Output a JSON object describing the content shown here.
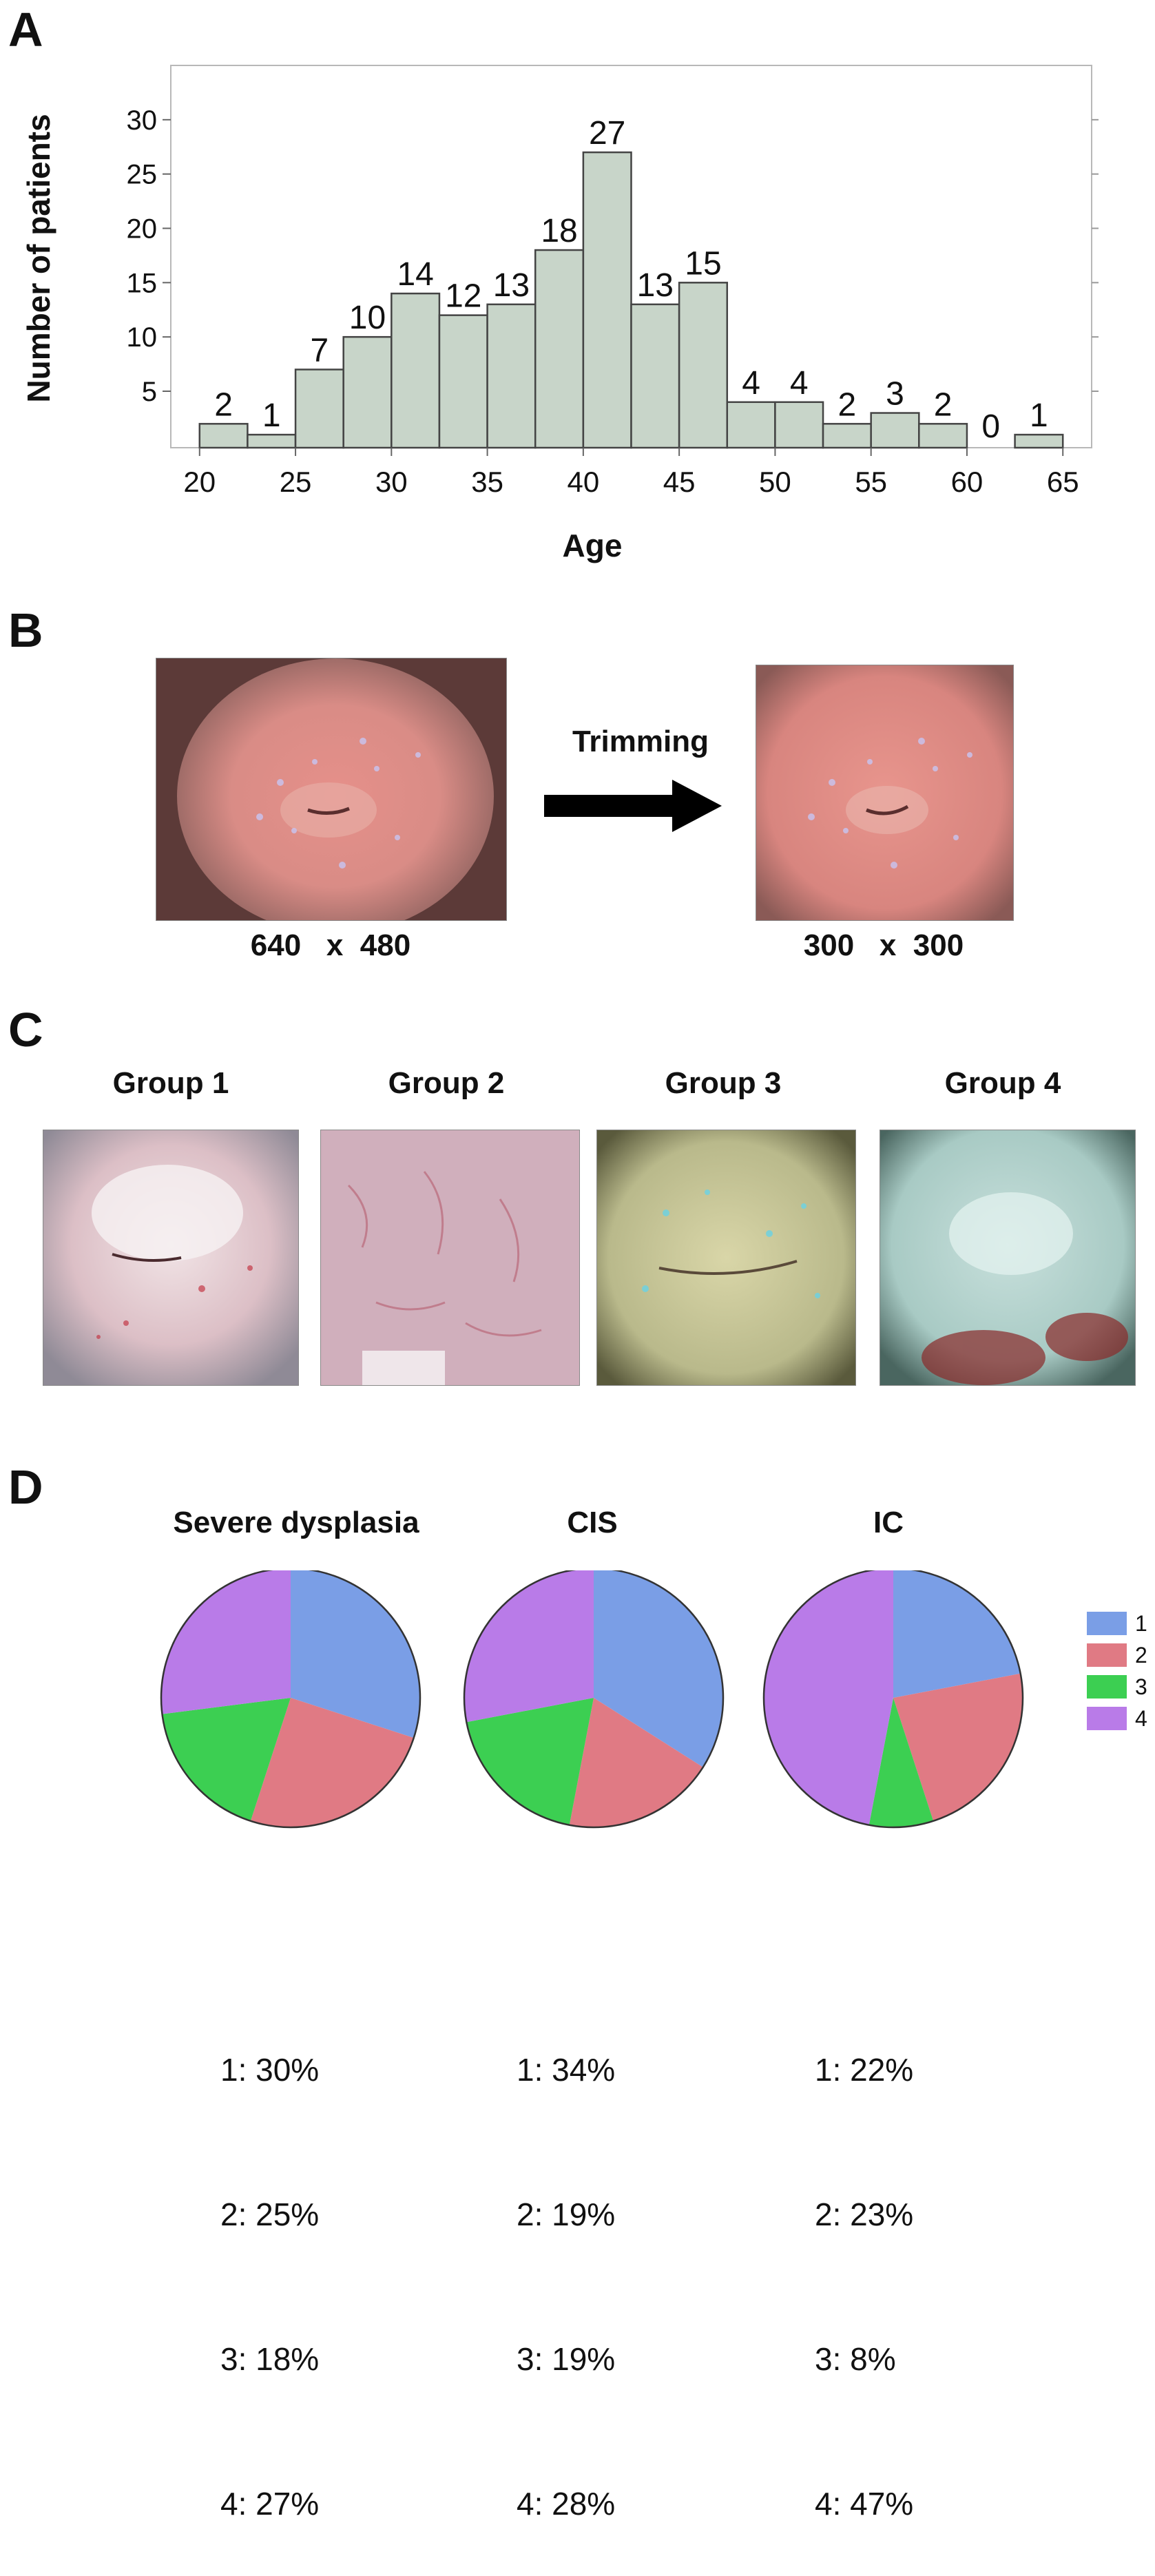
{
  "panels": {
    "a": "A",
    "b": "B",
    "c": "C",
    "d": "D"
  },
  "chart_data": [
    {
      "type": "bar",
      "bins": [
        20,
        22.5,
        25,
        27.5,
        30,
        32.5,
        35,
        37.5,
        40,
        42.5,
        45,
        47.5,
        50,
        52.5,
        55,
        57.5,
        60,
        62.5
      ],
      "bin_width": 2.5,
      "values": [
        2,
        1,
        7,
        10,
        14,
        12,
        13,
        18,
        27,
        13,
        15,
        4,
        4,
        2,
        3,
        2,
        0,
        1
      ],
      "xlabel": "Age",
      "ylabel": "Number of patients",
      "xticks": [
        20,
        25,
        30,
        35,
        40,
        45,
        50,
        55,
        60,
        65
      ],
      "yticks": [
        5,
        10,
        15,
        20,
        25,
        30
      ],
      "xlim": [
        18.5,
        66.5
      ],
      "ylim": [
        -0.2,
        35
      ],
      "bar_color": "#c8d5c9",
      "bar_edge": "#444444"
    },
    {
      "type": "pie",
      "title": "Severe dysplasia",
      "labels": [
        "1",
        "2",
        "3",
        "4"
      ],
      "values": [
        30,
        25,
        18,
        27
      ],
      "colors": [
        "#7a9ee6",
        "#e07a84",
        "#3ccf52",
        "#b97be8"
      ],
      "percent_lines": [
        "1: 30%",
        "2: 25%",
        "3: 18%",
        "4: 27%"
      ]
    },
    {
      "type": "pie",
      "title": "CIS",
      "labels": [
        "1",
        "2",
        "3",
        "4"
      ],
      "values": [
        34,
        19,
        19,
        28
      ],
      "colors": [
        "#7a9ee6",
        "#e07a84",
        "#3ccf52",
        "#b97be8"
      ],
      "percent_lines": [
        "1: 34%",
        "2: 19%",
        "3: 19%",
        "4: 28%"
      ]
    },
    {
      "type": "pie",
      "title": "IC",
      "labels": [
        "1",
        "2",
        "3",
        "4"
      ],
      "values": [
        22,
        23,
        8,
        47
      ],
      "colors": [
        "#7a9ee6",
        "#e07a84",
        "#3ccf52",
        "#b97be8"
      ],
      "percent_lines": [
        "1: 22%",
        "2: 23%",
        "3: 8%",
        "4: 47%"
      ]
    }
  ],
  "legend": [
    {
      "label": "1",
      "color": "#7a9ee6"
    },
    {
      "label": "2",
      "color": "#e07a84"
    },
    {
      "label": "3",
      "color": "#3ccf52"
    },
    {
      "label": "4",
      "color": "#b97be8"
    }
  ],
  "trimming": {
    "arrow_label": "Trimming",
    "original_size": "640   x  480",
    "trimmed_size": "300   x  300"
  },
  "groups": [
    "Group 1",
    "Group 2",
    "Group 3",
    "Group 4"
  ]
}
